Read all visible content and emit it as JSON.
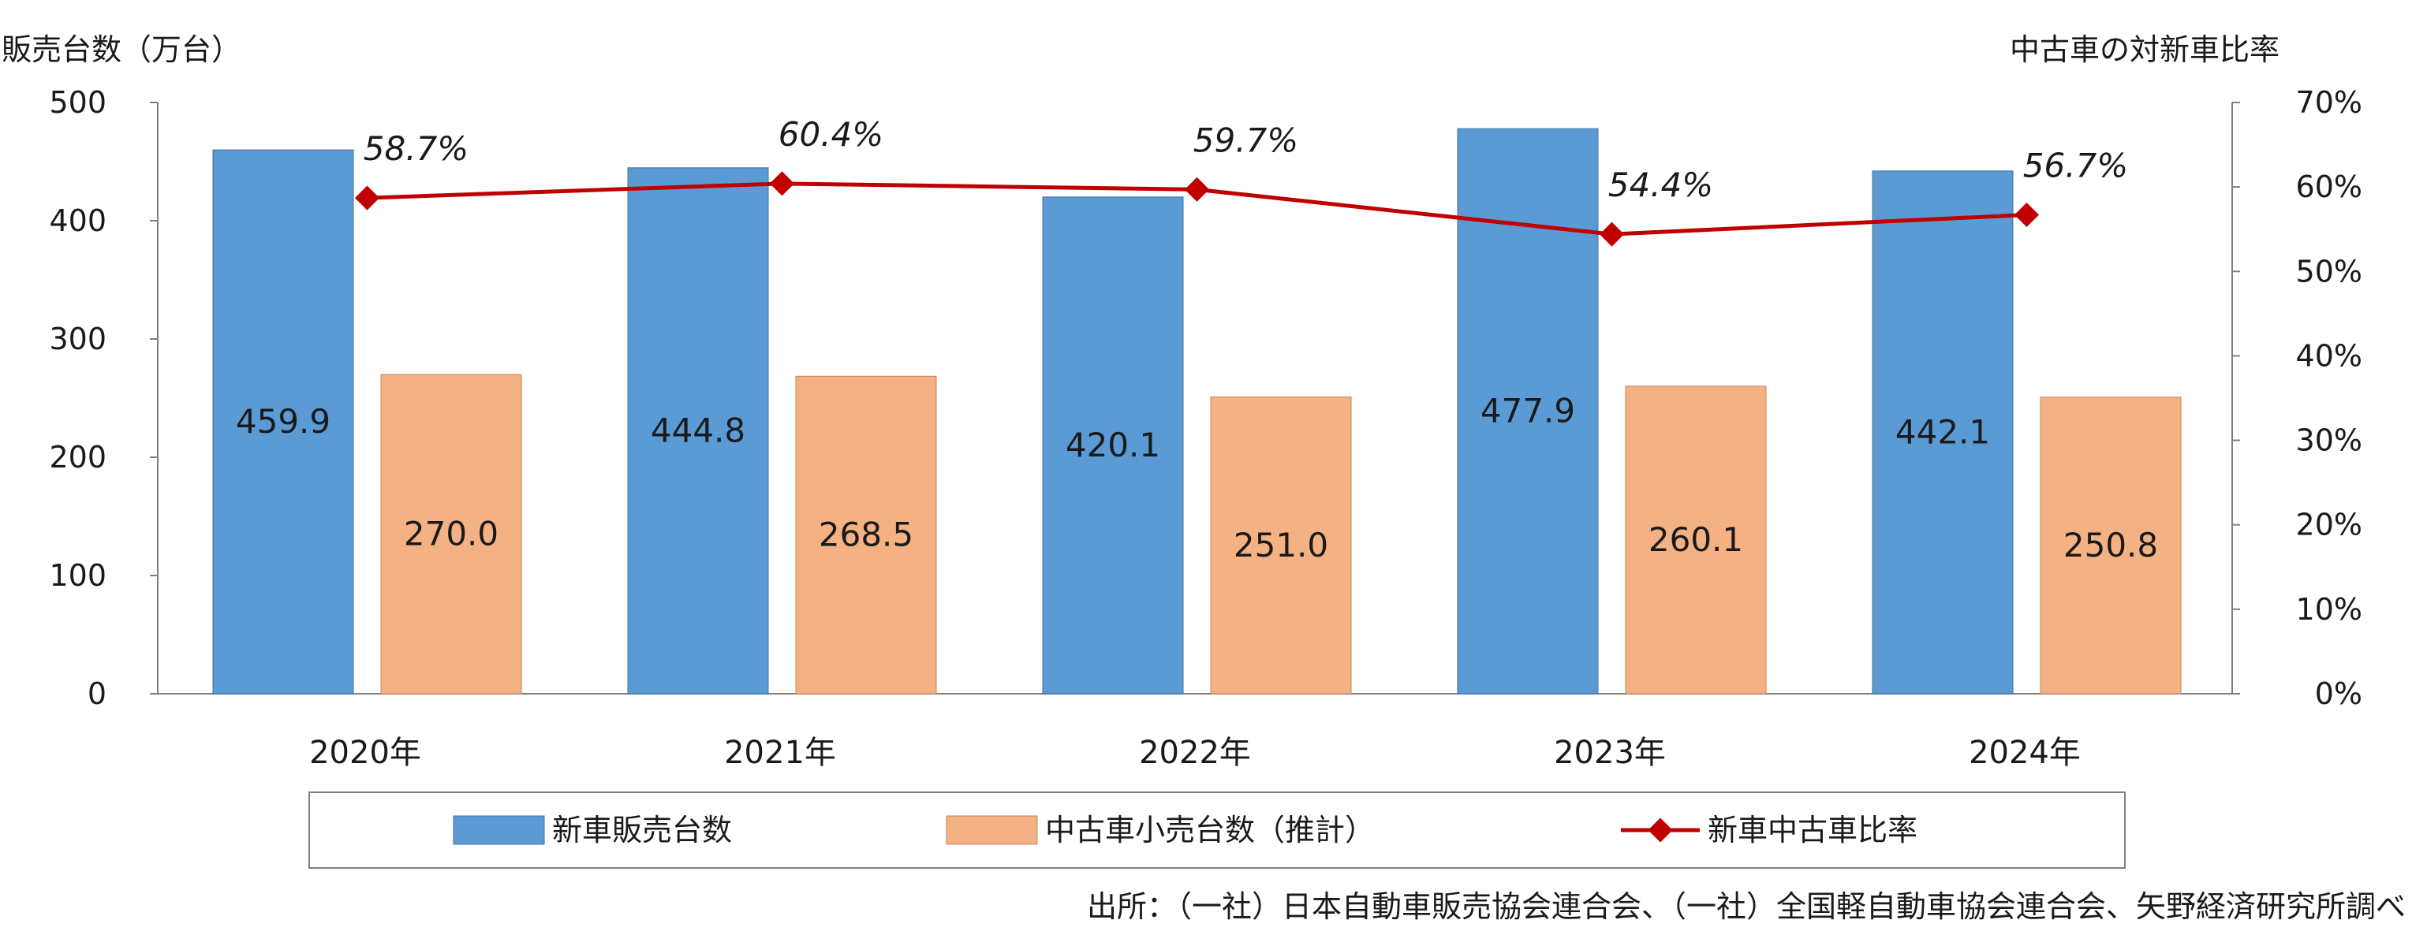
{
  "chart_data": {
    "type": "bar",
    "categories": [
      "2020年",
      "2021年",
      "2022年",
      "2023年",
      "2024年"
    ],
    "series": [
      {
        "name": "新車販売台数",
        "values": [
          459.9,
          444.8,
          420.1,
          477.9,
          442.1
        ],
        "axis": "left",
        "kind": "bar",
        "color": "#5b9bd5"
      },
      {
        "name": "中古車小売台数（推計）",
        "values": [
          270.0,
          268.5,
          251.0,
          260.1,
          250.8
        ],
        "axis": "left",
        "kind": "bar",
        "color": "#f4b183"
      },
      {
        "name": "新車中古車比率",
        "values": [
          58.7,
          60.4,
          59.7,
          54.4,
          56.7
        ],
        "axis": "right",
        "kind": "line",
        "color": "#c00000"
      }
    ],
    "bar_labels": [
      [
        "459.9",
        "444.8",
        "420.1",
        "477.9",
        "442.1"
      ],
      [
        "270.0",
        "268.5",
        "251.0",
        "260.1",
        "250.8"
      ]
    ],
    "line_labels": [
      "58.7%",
      "60.4%",
      "59.7%",
      "54.4%",
      "56.7%"
    ],
    "ylabel_left": "販売台数（万台）",
    "ylabel_right": "中古車の対新車比率",
    "ylim_left": [
      0,
      500
    ],
    "yticks_left": [
      "0",
      "100",
      "200",
      "300",
      "400",
      "500"
    ],
    "ylim_right": [
      0,
      70
    ],
    "yticks_right": [
      "0%",
      "10%",
      "20%",
      "30%",
      "40%",
      "50%",
      "60%",
      "70%"
    ],
    "grid": false,
    "legend_position": "bottom"
  },
  "source": "出所：（一社）日本自動車販売協会連合会、（一社）全国軽自動車協会連合会、矢野経済研究所調べ"
}
